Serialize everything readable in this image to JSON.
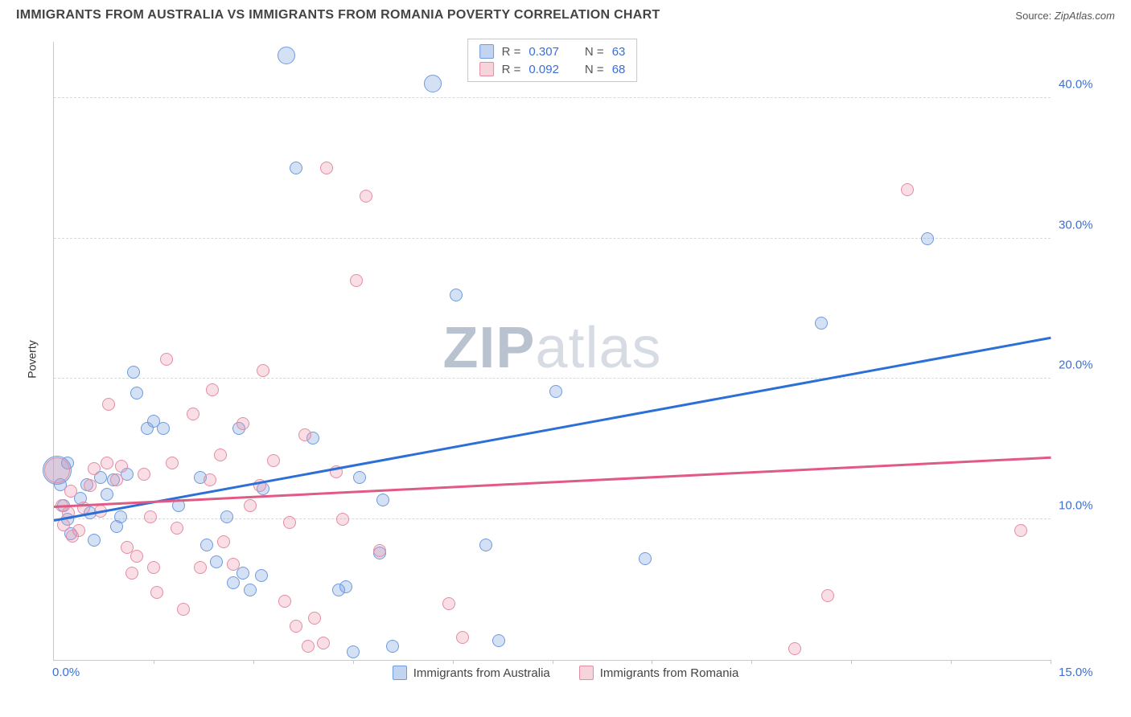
{
  "title": "IMMIGRANTS FROM AUSTRALIA VS IMMIGRANTS FROM ROMANIA POVERTY CORRELATION CHART",
  "source_label": "Source:",
  "source_value": "ZipAtlas.com",
  "ylabel": "Poverty",
  "watermark": {
    "part1": "ZIP",
    "part2": "atlas"
  },
  "chart": {
    "type": "scatter",
    "background_color": "#ffffff",
    "grid_color": "#d8d8d8",
    "axis_color": "#c9c9c9",
    "xlim": [
      0,
      15
    ],
    "ylim": [
      0,
      44
    ],
    "xtick_labels": {
      "min": "0.0%",
      "max": "15.0%"
    },
    "ytick_step": 10,
    "ytick_labels": [
      "10.0%",
      "20.0%",
      "30.0%",
      "40.0%"
    ],
    "vtick_positions_pct": [
      10,
      20,
      30,
      40,
      50,
      60,
      70,
      80,
      90,
      100
    ],
    "marker_radius": 8,
    "series": [
      {
        "key": "australia",
        "label": "Immigrants from Australia",
        "swatch_class": "blue",
        "color_fill": "rgba(120,160,220,0.32)",
        "color_stroke": "#6d9be0",
        "r_label": "R =",
        "r_value": "0.307",
        "n_label": "N =",
        "n_value": "63",
        "trend": {
          "y_at_xmin": 10.0,
          "y_at_xmax": 23.0,
          "color": "#2c6fd6"
        },
        "points": [
          [
            0.05,
            13.5,
            18
          ],
          [
            0.1,
            12.5
          ],
          [
            0.15,
            11.0
          ],
          [
            0.2,
            10.0
          ],
          [
            0.25,
            9.0
          ],
          [
            0.2,
            14.0
          ],
          [
            0.4,
            11.5
          ],
          [
            0.5,
            12.5
          ],
          [
            0.55,
            10.5
          ],
          [
            0.6,
            8.5
          ],
          [
            0.7,
            13.0
          ],
          [
            0.8,
            11.8
          ],
          [
            0.9,
            12.8
          ],
          [
            0.95,
            9.5
          ],
          [
            1.0,
            10.2
          ],
          [
            1.1,
            13.2
          ],
          [
            1.2,
            20.5
          ],
          [
            1.25,
            19.0
          ],
          [
            1.4,
            16.5
          ],
          [
            1.5,
            17.0
          ],
          [
            1.65,
            16.5
          ],
          [
            1.88,
            11.0
          ],
          [
            2.2,
            13.0
          ],
          [
            2.3,
            8.2
          ],
          [
            2.45,
            7.0
          ],
          [
            2.6,
            10.2
          ],
          [
            2.7,
            5.5
          ],
          [
            2.78,
            16.5
          ],
          [
            2.95,
            5.0
          ],
          [
            2.85,
            6.2
          ],
          [
            3.12,
            6.0
          ],
          [
            3.15,
            12.2
          ],
          [
            3.5,
            43.0,
            11
          ],
          [
            3.65,
            35.0
          ],
          [
            3.9,
            15.8
          ],
          [
            4.28,
            5.0
          ],
          [
            4.4,
            5.2
          ],
          [
            4.5,
            0.6
          ],
          [
            4.6,
            13.0
          ],
          [
            4.9,
            7.6
          ],
          [
            4.95,
            11.4
          ],
          [
            5.1,
            1.0
          ],
          [
            5.7,
            41.0,
            11
          ],
          [
            6.05,
            26.0
          ],
          [
            6.5,
            8.2
          ],
          [
            6.7,
            1.4
          ],
          [
            7.55,
            19.1
          ],
          [
            8.9,
            7.2
          ],
          [
            11.55,
            24.0
          ],
          [
            13.15,
            30.0
          ]
        ]
      },
      {
        "key": "romania",
        "label": "Immigrants from Romania",
        "swatch_class": "pink",
        "color_fill": "rgba(235,150,170,0.30)",
        "color_stroke": "#e48ca2",
        "r_label": "R =",
        "r_value": "0.092",
        "n_label": "N =",
        "n_value": "68",
        "trend": {
          "y_at_xmin": 11.0,
          "y_at_xmax": 14.5,
          "color": "#e05a84"
        },
        "points": [
          [
            0.05,
            13.5,
            16
          ],
          [
            0.12,
            11.0
          ],
          [
            0.15,
            9.6
          ],
          [
            0.22,
            10.5
          ],
          [
            0.25,
            12.0
          ],
          [
            0.28,
            8.8
          ],
          [
            0.38,
            9.2
          ],
          [
            0.45,
            10.8
          ],
          [
            0.55,
            12.4
          ],
          [
            0.6,
            13.6
          ],
          [
            0.7,
            10.6
          ],
          [
            0.8,
            14.0
          ],
          [
            0.82,
            18.2
          ],
          [
            0.95,
            12.8
          ],
          [
            1.02,
            13.8
          ],
          [
            1.1,
            8.0
          ],
          [
            1.18,
            6.2
          ],
          [
            1.25,
            7.4
          ],
          [
            1.35,
            13.2
          ],
          [
            1.45,
            10.2
          ],
          [
            1.5,
            6.6
          ],
          [
            1.55,
            4.8
          ],
          [
            1.7,
            21.4
          ],
          [
            1.78,
            14.0
          ],
          [
            1.85,
            9.4
          ],
          [
            1.95,
            3.6
          ],
          [
            2.1,
            17.5
          ],
          [
            2.2,
            6.6
          ],
          [
            2.35,
            12.8
          ],
          [
            2.38,
            19.2
          ],
          [
            2.5,
            14.6
          ],
          [
            2.55,
            8.4
          ],
          [
            2.7,
            6.8
          ],
          [
            2.85,
            16.8
          ],
          [
            2.95,
            11.0
          ],
          [
            3.1,
            12.4
          ],
          [
            3.15,
            20.6
          ],
          [
            3.3,
            14.2
          ],
          [
            3.48,
            4.2
          ],
          [
            3.55,
            9.8
          ],
          [
            3.64,
            2.4
          ],
          [
            3.78,
            16.0
          ],
          [
            3.82,
            1.0
          ],
          [
            3.92,
            3.0
          ],
          [
            4.05,
            1.2
          ],
          [
            4.1,
            35.0
          ],
          [
            4.25,
            13.4
          ],
          [
            4.35,
            10.0
          ],
          [
            4.55,
            27.0
          ],
          [
            4.7,
            33.0
          ],
          [
            4.9,
            7.8
          ],
          [
            5.95,
            4.0
          ],
          [
            6.15,
            1.6
          ],
          [
            11.15,
            0.8
          ],
          [
            11.65,
            4.6
          ],
          [
            12.85,
            33.5
          ],
          [
            14.55,
            9.2
          ]
        ]
      }
    ]
  }
}
